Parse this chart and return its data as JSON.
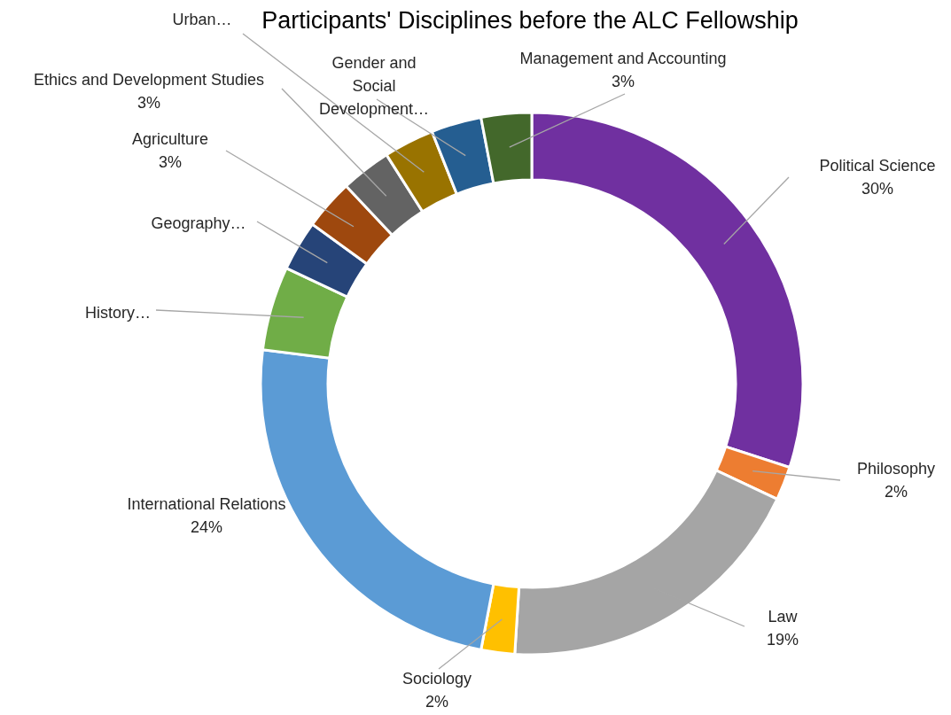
{
  "chart_data": {
    "type": "donut",
    "title": "Participants' Disciplines before the ALC Fellowship",
    "categories": [
      "Political Science",
      "Philosophy",
      "Law",
      "Sociology",
      "International Relations",
      "History…",
      "Geography…",
      "Agriculture",
      "Ethics and Development Studies",
      "Urban…",
      "Gender and Social Development…",
      "Management and Accounting"
    ],
    "values": [
      30,
      2,
      19,
      2,
      24,
      5,
      3,
      3,
      3,
      3,
      3,
      3
    ],
    "colors": [
      "#7030a0",
      "#ed7d31",
      "#a5a5a5",
      "#ffc000",
      "#5b9bd5",
      "#70ad47",
      "#264478",
      "#9e480e",
      "#636363",
      "#997300",
      "#255e91",
      "#43682b"
    ],
    "value_labels": [
      "30%",
      "2%",
      "19%",
      "2%",
      "24%",
      null,
      null,
      "3%",
      "3%",
      null,
      null,
      "3%"
    ],
    "legend": false
  }
}
